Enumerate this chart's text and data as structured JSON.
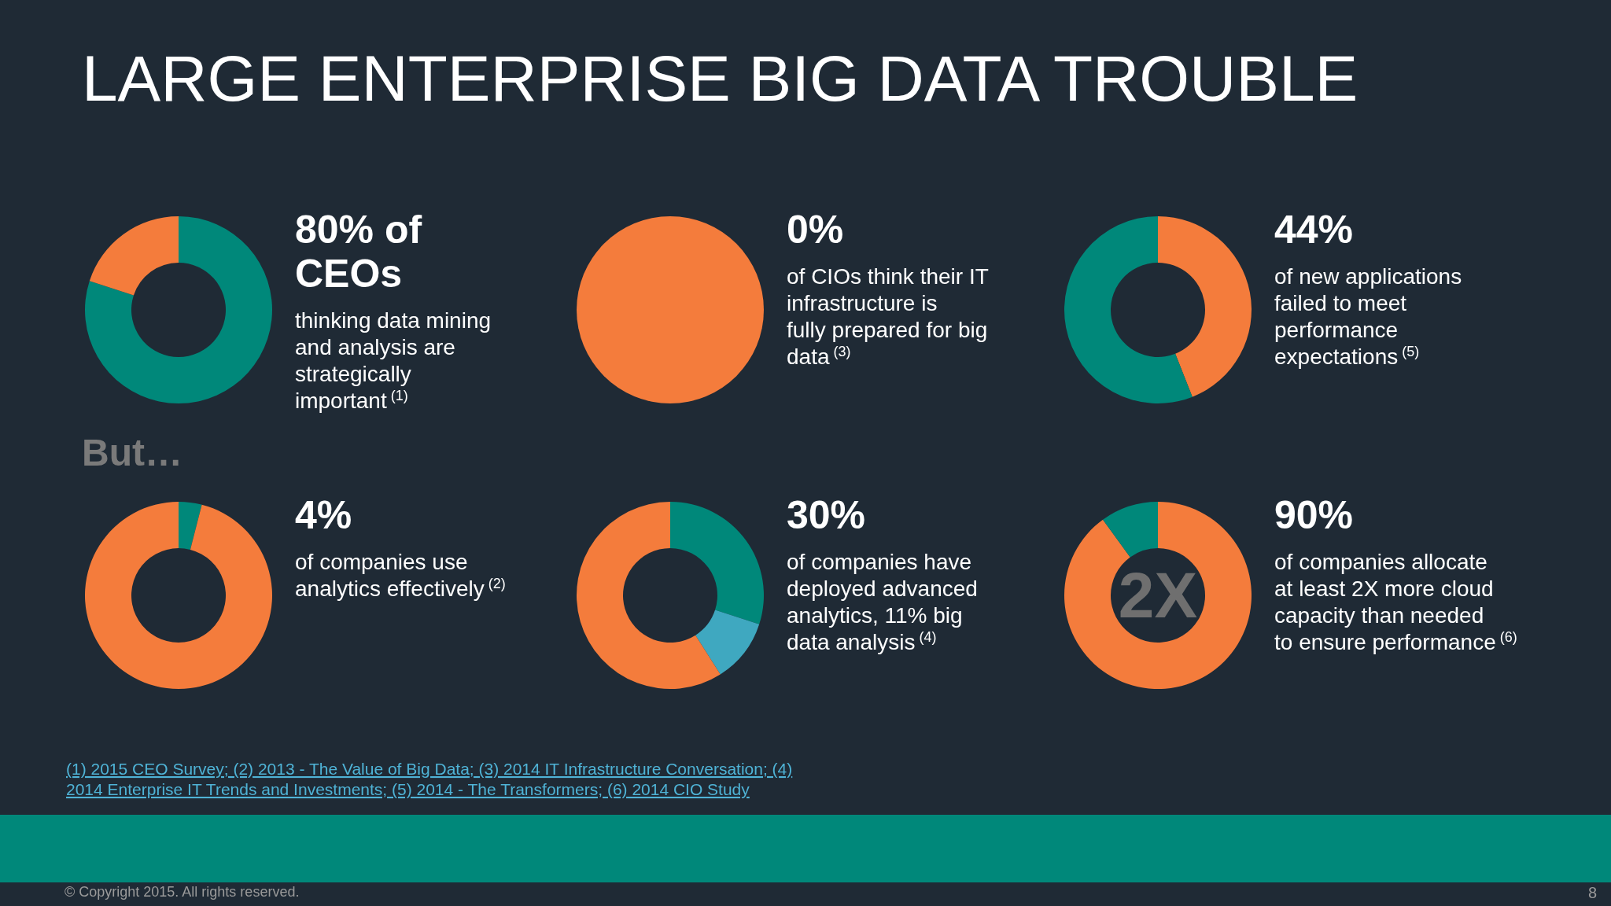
{
  "chart_data": [
    {
      "type": "other",
      "title": "LARGE ENTERPRISE BIG DATA TROUBLE",
      "annotations": [
        "But…",
        "(1) 2015 CEO Survey; (2) 2013 - The Value of Big Data; (3) 2014 IT Infrastructure Conversation; (4)",
        "2014 Enterprise IT Trends and Investments; (5) 2014 - The Transformers; (6) 2014 CIO Study",
        "© Copyright 2015. All rights reserved.",
        "8"
      ]
    },
    {
      "type": "donut",
      "title": "80% of CEOs",
      "subtitle": "thinking data mining and analysis are strategically important $^{(1)}$",
      "categories": [
        null,
        null
      ],
      "values": [
        80,
        20
      ],
      "colors": [
        "#00887a",
        "#f47c3c"
      ]
    },
    {
      "type": "pie",
      "title": "0%",
      "subtitle": "of CIOs think their IT infrastructure is fully prepared for big data $^{(3)}$",
      "categories": [
        null,
        null
      ],
      "values": [
        0,
        100
      ],
      "colors": [
        "#00887a",
        "#f47c3c"
      ]
    },
    {
      "type": "donut",
      "title": "44%",
      "subtitle": "of new applications failed to meet performance expectations $^{(5)}$",
      "categories": [
        null,
        null
      ],
      "values": [
        44,
        56
      ],
      "colors": [
        "#f47c3c",
        "#00887a"
      ]
    },
    {
      "type": "donut",
      "title": "4%",
      "subtitle": "of companies use analytics effectively $^{(2)}$",
      "categories": [
        null,
        null
      ],
      "values": [
        4,
        96
      ],
      "colors": [
        "#00887a",
        "#f47c3c"
      ]
    },
    {
      "type": "donut",
      "title": "30%",
      "subtitle": "of companies have deployed advanced analytics, 11% big data analysis $^{(4)}$",
      "categories": [
        null,
        null,
        null
      ],
      "values": [
        30,
        11,
        59
      ],
      "colors": [
        "#00887a",
        "#3fa8c0",
        "#f47c3c"
      ]
    },
    {
      "type": "donut",
      "title": "90%",
      "subtitle": "of companies allocate at least 2X more cloud capacity than needed to ensure performance $^{(6)}$",
      "categories": [
        null,
        null
      ],
      "values": [
        90,
        10
      ],
      "colors": [
        "#f47c3c",
        "#00887a"
      ],
      "annotations": [
        "2X"
      ]
    }
  ]
}
